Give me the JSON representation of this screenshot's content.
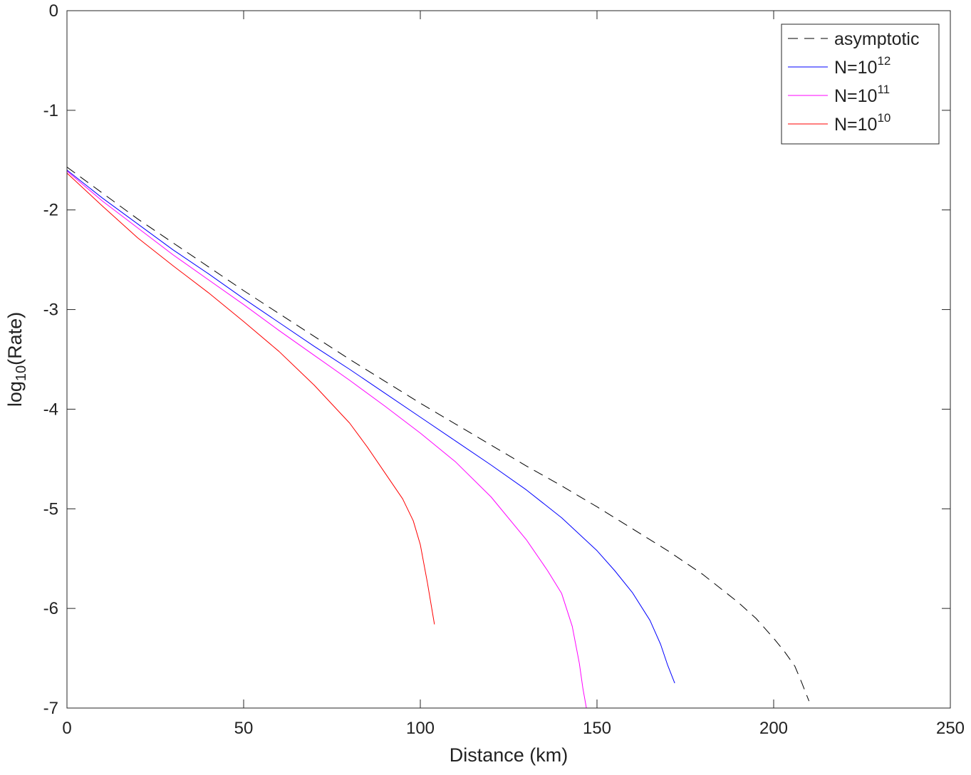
{
  "chart_data": {
    "type": "line",
    "xlabel": "Distance (km)",
    "ylabel": {
      "prefix": "log",
      "subscript": "10",
      "suffix": "(Rate)"
    },
    "xlim": [
      0,
      250
    ],
    "ylim": [
      -7,
      0
    ],
    "x_ticks": [
      0,
      50,
      100,
      150,
      200,
      250
    ],
    "x_tick_labels": [
      "0",
      "50",
      "100",
      "150",
      "200",
      "250"
    ],
    "y_ticks": [
      0,
      -1,
      -2,
      -3,
      -4,
      -5,
      -6,
      -7
    ],
    "y_tick_labels": [
      "0",
      "-1",
      "-2",
      "-3",
      "-4",
      "-5",
      "-6",
      "-7"
    ],
    "grid": false,
    "box": true,
    "legend": {
      "placement": "top-right"
    },
    "series": [
      {
        "name": "asymptotic",
        "label_base": "asymptotic",
        "label_sup": "",
        "color": "#000000",
        "dash": "dashed",
        "x": [
          0,
          10,
          20,
          30,
          40,
          50,
          60,
          70,
          80,
          90,
          100,
          110,
          120,
          130,
          140,
          150,
          160,
          170,
          180,
          190,
          195,
          200,
          203,
          206,
          208,
          210
        ],
        "y": [
          -1.57,
          -1.83,
          -2.09,
          -2.33,
          -2.57,
          -2.81,
          -3.04,
          -3.27,
          -3.5,
          -3.72,
          -3.94,
          -4.15,
          -4.36,
          -4.57,
          -4.77,
          -4.98,
          -5.2,
          -5.42,
          -5.66,
          -5.94,
          -6.1,
          -6.3,
          -6.43,
          -6.58,
          -6.75,
          -6.93
        ]
      },
      {
        "name": "N=10^12",
        "label_base": "N=10",
        "label_sup": "12",
        "color": "#0000ff",
        "dash": "solid",
        "x": [
          0,
          10,
          20,
          30,
          40,
          50,
          60,
          70,
          80,
          90,
          100,
          110,
          120,
          130,
          140,
          150,
          155,
          160,
          165,
          168,
          170,
          172
        ],
        "y": [
          -1.6,
          -1.88,
          -2.14,
          -2.4,
          -2.64,
          -2.89,
          -3.13,
          -3.37,
          -3.6,
          -3.84,
          -4.08,
          -4.32,
          -4.56,
          -4.81,
          -5.09,
          -5.42,
          -5.62,
          -5.84,
          -6.12,
          -6.36,
          -6.57,
          -6.75
        ]
      },
      {
        "name": "N=10^11",
        "label_base": "N=10",
        "label_sup": "11",
        "color": "#ff00ff",
        "dash": "solid",
        "x": [
          0,
          10,
          20,
          30,
          40,
          50,
          60,
          70,
          80,
          90,
          100,
          110,
          120,
          130,
          136,
          140,
          143,
          145,
          146,
          147
        ],
        "y": [
          -1.61,
          -1.91,
          -2.18,
          -2.45,
          -2.7,
          -2.95,
          -3.21,
          -3.46,
          -3.71,
          -3.97,
          -4.24,
          -4.53,
          -4.88,
          -5.31,
          -5.62,
          -5.85,
          -6.18,
          -6.55,
          -6.8,
          -7.0
        ]
      },
      {
        "name": "N=10^10",
        "label_base": "N=10",
        "label_sup": "10",
        "color": "#ff0000",
        "dash": "solid",
        "x": [
          0,
          10,
          20,
          30,
          40,
          50,
          60,
          70,
          80,
          85,
          90,
          95,
          98,
          100,
          102,
          104
        ],
        "y": [
          -1.63,
          -1.96,
          -2.28,
          -2.56,
          -2.83,
          -3.12,
          -3.42,
          -3.76,
          -4.14,
          -4.38,
          -4.64,
          -4.9,
          -5.12,
          -5.36,
          -5.74,
          -6.16
        ]
      }
    ]
  }
}
